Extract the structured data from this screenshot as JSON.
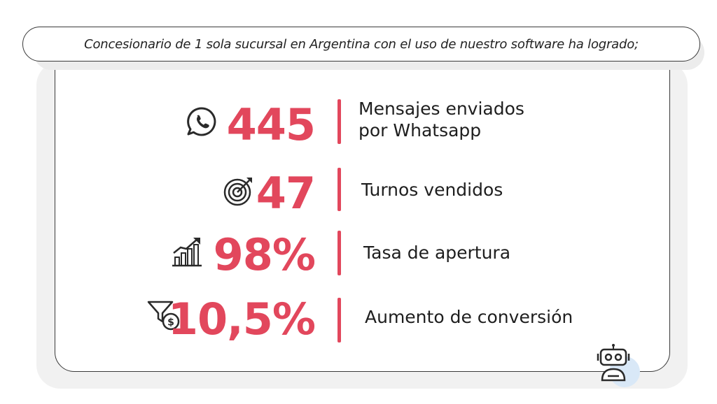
{
  "header": {
    "text": "Concesionario de 1 sola sucursal en Argentina con el uso de nuestro software ha logrado;"
  },
  "stats": [
    {
      "value": "445",
      "label_line1": "Mensajes enviados",
      "label_line2": "por Whatsapp",
      "icon": "whatsapp-icon"
    },
    {
      "value": "47",
      "label_line1": "Turnos vendidos",
      "icon": "target-icon"
    },
    {
      "value": "98%",
      "label_line1": "Tasa de apertura",
      "icon": "growth-chart-icon"
    },
    {
      "value": "10,5%",
      "label_line1": "Aumento de conversión",
      "icon": "funnel-money-icon"
    }
  ],
  "colors": {
    "accent": "#e2475c",
    "text": "#1e1e1e",
    "border": "#3a3a3a",
    "robot_glow": "#d9e8f7"
  },
  "decorations": {
    "corner_icon": "robot-icon"
  }
}
